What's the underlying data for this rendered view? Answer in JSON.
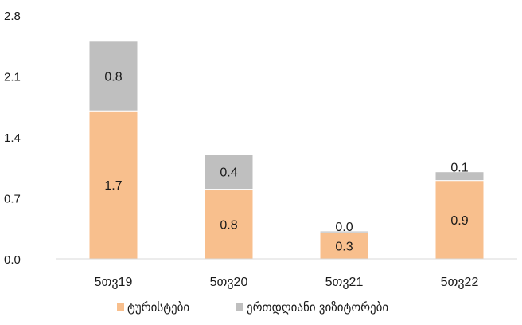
{
  "chart_data": {
    "type": "bar",
    "stacked": true,
    "categories": [
      "5თვ19",
      "5თვ20",
      "5თვ21",
      "5თვ22"
    ],
    "series": [
      {
        "name": "ტურისტები",
        "color": "#F8BF8D",
        "values": [
          1.7,
          0.8,
          0.3,
          0.9
        ],
        "labels": [
          "1.7",
          "0.8",
          "0.3",
          "0.9"
        ]
      },
      {
        "name": "ერთდღიანი ვიზიტორები",
        "color": "#BFBFBF",
        "values": [
          0.8,
          0.4,
          0.02,
          0.1
        ],
        "labels": [
          "0.8",
          "0.4",
          "0.0",
          "0.1"
        ]
      }
    ],
    "ylim": [
      0,
      2.8
    ],
    "yticks": [
      "0.0",
      "0.7",
      "1.4",
      "2.1",
      "2.8"
    ],
    "ytick_values": [
      0,
      0.7,
      1.4,
      2.1,
      2.8
    ],
    "grid": false,
    "legend_position": "bottom",
    "title": "",
    "xlabel": "",
    "ylabel": ""
  }
}
